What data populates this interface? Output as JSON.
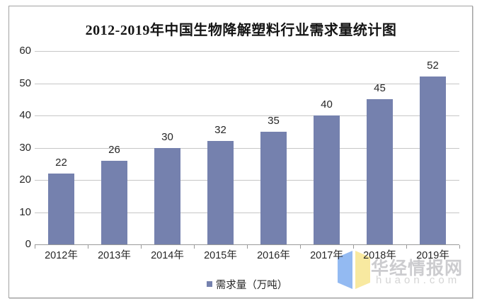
{
  "title": "2012-2019年中国生物降解塑料行业需求量统计图",
  "chart_data": {
    "type": "bar",
    "title": "2012-2019年中国生物降解塑料行业需求量统计图",
    "categories": [
      "2012年",
      "2013年",
      "2014年",
      "2015年",
      "2016年",
      "2017年",
      "2018年",
      "2019年"
    ],
    "series": [
      {
        "name": "需求量（万吨）",
        "values": [
          22,
          26,
          30,
          32,
          35,
          40,
          45,
          52
        ]
      }
    ],
    "xlabel": "",
    "ylabel": "",
    "ylim": [
      0,
      60
    ],
    "yticks": [
      0,
      10,
      20,
      30,
      40,
      50,
      60
    ],
    "grid": true,
    "legend_position": "bottom",
    "data_labels": true
  },
  "legend": {
    "label": "需求量（万吨）",
    "swatch_color": "#7581AE"
  },
  "watermark": {
    "name": "华经情报网",
    "domain": "huaon.com",
    "logo_left_color": "#93BAF2",
    "logo_right_color": "#F8E9A0"
  },
  "colors": {
    "bar": "#7581AE",
    "grid": "#C6C6C6",
    "axis": "#9A9A9A",
    "frame_border": "#A3A3A3",
    "text": "#262626",
    "watermark_text": "#C4C4C7"
  }
}
